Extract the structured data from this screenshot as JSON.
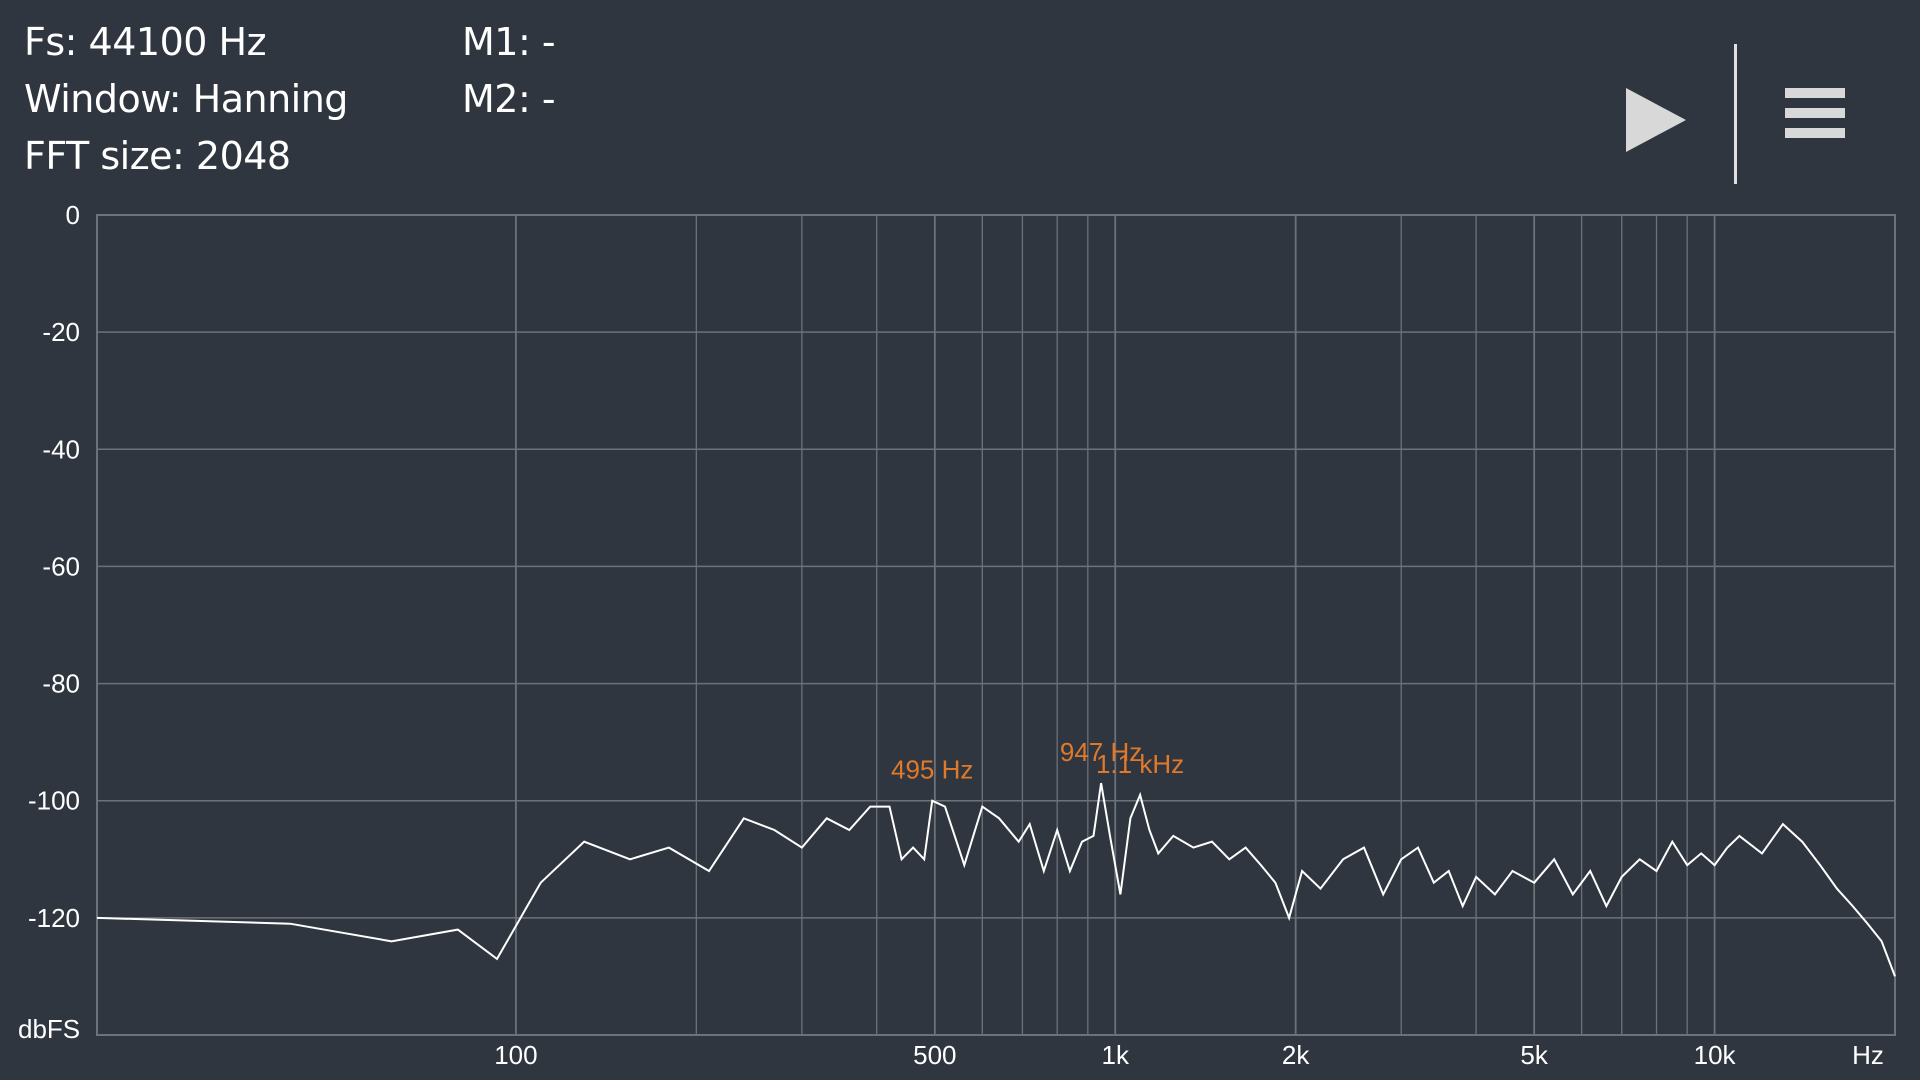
{
  "info": {
    "fs": "Fs: 44100 Hz",
    "window": "Window: Hanning",
    "fft": "FFT size: 2048",
    "m1": "M1: -",
    "m2": "M2: -"
  },
  "toolbar": {
    "play_icon": "play-icon",
    "menu_icon": "hamburger-menu-icon"
  },
  "colors": {
    "background": "#30363f",
    "grid": "#6c727a",
    "trace": "#ffffff",
    "peak_label": "#e07a2a"
  },
  "chart_data": {
    "type": "line",
    "title": "",
    "xlabel": "Hz",
    "ylabel": "dbFS",
    "xscale": "log",
    "xlim": [
      20,
      20000
    ],
    "ylim": [
      -140,
      0
    ],
    "grid": true,
    "yticks": [
      0,
      -20,
      -40,
      -60,
      -80,
      -100,
      -120
    ],
    "xticks": [
      {
        "value": 100,
        "label": "100"
      },
      {
        "value": 500,
        "label": "500"
      },
      {
        "value": 1000,
        "label": "1k"
      },
      {
        "value": 2000,
        "label": "2k"
      },
      {
        "value": 5000,
        "label": "5k"
      },
      {
        "value": 10000,
        "label": "10k"
      }
    ],
    "peaks": [
      {
        "label": "495 Hz",
        "x": 495,
        "y": -100
      },
      {
        "label": "947 Hz",
        "x": 947,
        "y": -97
      },
      {
        "label": "1.1  kHz",
        "x": 1100,
        "y": -99
      }
    ],
    "series": [
      {
        "x": [
          20,
          42,
          62,
          80,
          93,
          110,
          130,
          155,
          180,
          210,
          240,
          270,
          300,
          330,
          360,
          390,
          420,
          440,
          460,
          480,
          495,
          520,
          560,
          600,
          640,
          690,
          720,
          760,
          800,
          840,
          880,
          920,
          947,
          980,
          1020,
          1060,
          1100,
          1140,
          1180,
          1250,
          1350,
          1450,
          1550,
          1650,
          1750,
          1850,
          1950,
          2050,
          2200,
          2400,
          2600,
          2800,
          3000,
          3200,
          3400,
          3600,
          3800,
          4000,
          4300,
          4600,
          5000,
          5400,
          5800,
          6200,
          6600,
          7000,
          7500,
          8000,
          8500,
          9000,
          9500,
          10000,
          10500,
          11000,
          12000,
          13000,
          14000,
          15000,
          16000,
          17000,
          18000,
          19000,
          20000
        ],
        "y": [
          -120,
          -121,
          -124,
          -122,
          -127,
          -114,
          -107,
          -110,
          -108,
          -112,
          -103,
          -105,
          -108,
          -103,
          -105,
          -101,
          -101,
          -110,
          -108,
          -110,
          -100,
          -101,
          -111,
          -101,
          -103,
          -107,
          -104,
          -112,
          -105,
          -112,
          -107,
          -106,
          -97,
          -106,
          -116,
          -103,
          -99,
          -105,
          -109,
          -106,
          -108,
          -107,
          -110,
          -108,
          -111,
          -114,
          -120,
          -112,
          -115,
          -110,
          -108,
          -116,
          -110,
          -108,
          -114,
          -112,
          -118,
          -113,
          -116,
          -112,
          -114,
          -110,
          -116,
          -112,
          -118,
          -113,
          -110,
          -112,
          -107,
          -111,
          -109,
          -111,
          -108,
          -106,
          -109,
          -104,
          -107,
          -111,
          -115,
          -118,
          -121,
          -124,
          -130
        ]
      }
    ]
  }
}
